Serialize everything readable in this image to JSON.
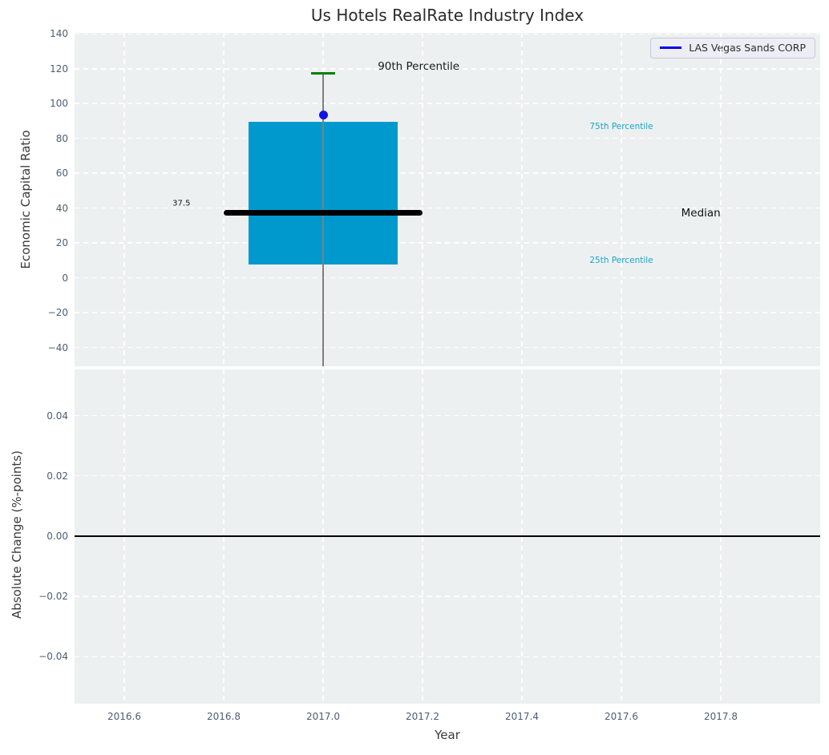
{
  "title": "Us Hotels RealRate Industry Index",
  "legend": {
    "label": "LAS Vegas Sands CORP",
    "line_color": "#0000e6",
    "position": "upper right"
  },
  "colors": {
    "axes_bg": "#edf0f1",
    "grid": "#ffffff",
    "tick_label": "#4c5d73",
    "axis_label": "#3a3a3a",
    "title": "#2b2b2b",
    "box_fill": "#0099cd",
    "median_line": "#000000",
    "whisker": "#7f7f7f",
    "p90_cap": "#008000",
    "company_point": "#1414e0",
    "percentile_label": "#1ba3c9",
    "zero_line": "#000000"
  },
  "chart_data": [
    {
      "type": "boxplot",
      "panel": "top",
      "title": "Us Hotels RealRate Industry Index",
      "xlabel": "",
      "ylabel": "Economic Capital Ratio",
      "xlim": [
        2016.5,
        2018.0
      ],
      "ylim": [
        -50.8,
        140.6
      ],
      "grid": true,
      "yticks": {
        "values": [
          140,
          120,
          100,
          80,
          60,
          40,
          20,
          0,
          -20,
          -40
        ],
        "labels": [
          "140",
          "120",
          "100",
          "80",
          "60",
          "40",
          "20",
          "0",
          "−20",
          "−40"
        ]
      },
      "xticks": {
        "values": [
          2016.6,
          2016.8,
          2017.0,
          2017.2,
          2017.4,
          2017.6,
          2017.8
        ],
        "labels": []
      },
      "box": {
        "x": 2017.0,
        "box_halfwidth": 0.15,
        "median_halfwidth": 0.2,
        "cap_halfwidth": 0.024,
        "q1": 7.8,
        "median": 37.5,
        "q3": 89.3,
        "p90": 117.5,
        "whisker_low": -50.8,
        "whisker_low_clipped": true
      },
      "company_point": {
        "x": 2017.0,
        "y": 93.5,
        "name": "LAS Vegas Sands CORP"
      },
      "annotations": [
        {
          "text": "90th Percentile",
          "x": 2017.11,
          "y": 121.3,
          "size": 13.5,
          "color": "#1a1a1a",
          "anchor": "left"
        },
        {
          "text": "37.5",
          "x": 2016.715,
          "y": 42.6,
          "size": 10,
          "color": "#1a1a1a",
          "anchor": "center"
        },
        {
          "text": "75th Percentile",
          "x": 2017.6,
          "y": 86.8,
          "size": 10.5,
          "color": "#1ba3c9",
          "anchor": "center"
        },
        {
          "text": "Median",
          "x": 2017.76,
          "y": 37.1,
          "size": 13.5,
          "color": "#111111",
          "anchor": "center"
        },
        {
          "text": "25th Percentile",
          "x": 2017.6,
          "y": 9.9,
          "size": 10.5,
          "color": "#1ba3c9",
          "anchor": "center"
        }
      ]
    },
    {
      "type": "line",
      "panel": "bottom",
      "xlabel": "Year",
      "ylabel": "Absolute Change (%-points)",
      "xlim": [
        2016.5,
        2018.0
      ],
      "ylim": [
        -0.0556,
        0.0553
      ],
      "grid": true,
      "zero_line": 0.0,
      "yticks": {
        "values": [
          0.04,
          0.02,
          0.0,
          -0.02,
          -0.04
        ],
        "labels": [
          "0.04",
          "0.02",
          "0.00",
          "−0.02",
          "−0.04"
        ]
      },
      "xticks": {
        "values": [
          2016.6,
          2016.8,
          2017.0,
          2017.2,
          2017.4,
          2017.6,
          2017.8
        ],
        "labels": [
          "2016.6",
          "2016.8",
          "2017.0",
          "2017.2",
          "2017.4",
          "2017.6",
          "2017.8"
        ]
      },
      "series": []
    }
  ]
}
